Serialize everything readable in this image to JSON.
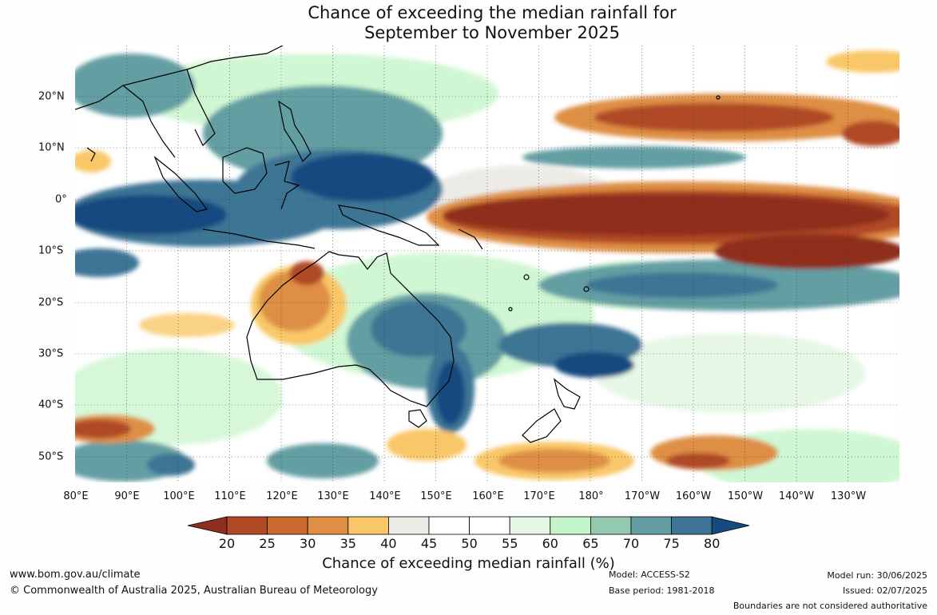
{
  "title": {
    "line1": "Chance of exceeding the median rainfall for",
    "line2": "September to November 2025"
  },
  "map": {
    "lat_labels": [
      "20°N",
      "10°N",
      "0°",
      "10°S",
      "20°S",
      "30°S",
      "40°S",
      "50°S"
    ],
    "lon_labels": [
      "80°E",
      "90°E",
      "100°E",
      "110°E",
      "120°E",
      "130°E",
      "140°E",
      "150°E",
      "160°E",
      "170°E",
      "180°",
      "170°W",
      "160°W",
      "150°W",
      "140°W",
      "130°W"
    ],
    "lat_range": [
      -55,
      30
    ],
    "lon_range": [
      80,
      240
    ]
  },
  "colorbar": {
    "title": "Chance of exceeding median rainfall (%)",
    "ticks": [
      "20",
      "25",
      "30",
      "35",
      "40",
      "45",
      "50",
      "55",
      "60",
      "65",
      "70",
      "75",
      "80"
    ],
    "colors": [
      "#8f2e1e",
      "#b04a26",
      "#c9692f",
      "#de8f44",
      "#f9c768",
      "#ecebe6",
      "#ffffff",
      "#ffffff",
      "#e6f7e6",
      "#c4f5c8",
      "#94c9b1",
      "#649ea3",
      "#3e7495",
      "#154a80"
    ]
  },
  "footer": {
    "website": "www.bom.gov.au/climate",
    "copyright": "© Commonwealth of Australia 2025, Australian Bureau of Meteorology",
    "model": "Model: ACCESS-S2",
    "base_period": "Base period: 1981-2018",
    "model_run": "Model run: 30/06/2025",
    "issued": "Issued: 02/07/2025",
    "disclaimer": "Boundaries are not considered authoritative"
  }
}
